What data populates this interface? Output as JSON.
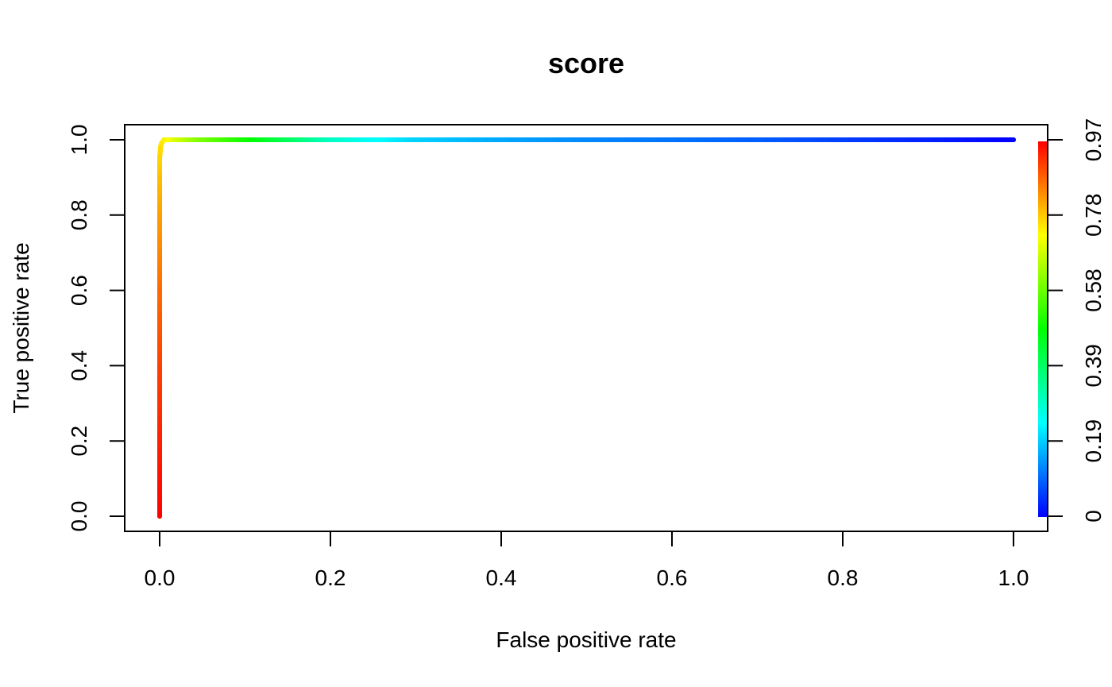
{
  "chart_data": {
    "type": "line",
    "title": "score",
    "xlabel": "False positive rate",
    "ylabel": "True positive rate",
    "xlim": [
      0.0,
      1.0
    ],
    "ylim": [
      0.0,
      1.0
    ],
    "x_ticks": [
      "0.0",
      "0.2",
      "0.4",
      "0.6",
      "0.8",
      "1.0"
    ],
    "y_ticks": [
      "0.0",
      "0.2",
      "0.4",
      "0.6",
      "0.8",
      "1.0"
    ],
    "colorbar": {
      "tick_labels": [
        "0",
        "0.19",
        "0.39",
        "0.58",
        "0.78",
        "0.97"
      ],
      "range": [
        0,
        0.97
      ],
      "colors": [
        "#0000ff",
        "#00ffff",
        "#00ff00",
        "#ffff00",
        "#ff0000"
      ]
    },
    "grid": false,
    "series": [
      {
        "x": [
          0.0,
          0.0,
          0.0,
          0.0,
          0.0,
          0.0,
          0.0,
          0.001,
          0.002,
          0.005,
          0.01,
          0.05,
          0.1,
          0.2,
          0.3,
          0.4,
          0.5,
          0.6,
          0.7,
          0.8,
          0.9,
          1.0
        ],
        "y": [
          0.0,
          0.2,
          0.4,
          0.6,
          0.8,
          0.9,
          0.95,
          0.98,
          0.99,
          1.0,
          1.0,
          1.0,
          1.0,
          1.0,
          1.0,
          1.0,
          1.0,
          1.0,
          1.0,
          1.0,
          1.0,
          1.0
        ],
        "cutoff": [
          0.97,
          0.94,
          0.91,
          0.87,
          0.82,
          0.79,
          0.77,
          0.76,
          0.75,
          0.74,
          0.72,
          0.6,
          0.5,
          0.3,
          0.2,
          0.16,
          0.13,
          0.11,
          0.09,
          0.06,
          0.03,
          0.0
        ]
      }
    ]
  }
}
